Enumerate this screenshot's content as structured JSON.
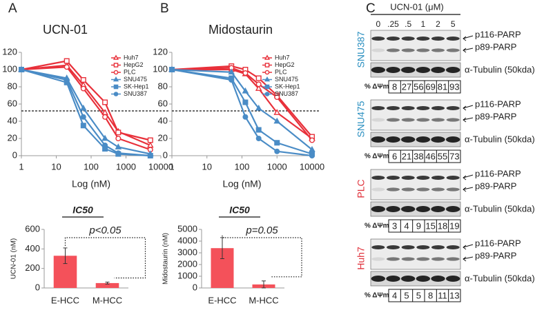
{
  "panels": [
    "A",
    "B",
    "C"
  ],
  "chart_data": [
    {
      "type": "line",
      "title": "UCN-01",
      "xlabel": "Log (nM)",
      "xscale": "log",
      "xlim": [
        1,
        10000
      ],
      "xticks": [
        1,
        10,
        100,
        1000,
        10000
      ],
      "ylim": [
        0,
        120
      ],
      "yticks": [
        0,
        20,
        40,
        60,
        80,
        100,
        120
      ],
      "ref_line": 52,
      "legend": "upper right",
      "x": [
        1,
        20,
        60,
        250,
        600,
        5000
      ],
      "series": [
        {
          "name": "Huh7",
          "color": "#e8303a",
          "marker": "triangle",
          "filled": false,
          "values": [
            100,
            105,
            82,
            50,
            28,
            12
          ]
        },
        {
          "name": "HepG2",
          "color": "#e8303a",
          "marker": "square",
          "filled": false,
          "values": [
            100,
            110,
            88,
            62,
            27,
            18
          ]
        },
        {
          "name": "PLC",
          "color": "#e8303a",
          "marker": "circle",
          "filled": false,
          "values": [
            100,
            103,
            78,
            45,
            20,
            7
          ]
        },
        {
          "name": "SNU475",
          "color": "#4a8cc6",
          "marker": "triangle",
          "filled": true,
          "values": [
            100,
            90,
            55,
            20,
            10,
            2
          ]
        },
        {
          "name": "SK-Hep1",
          "color": "#4a8cc6",
          "marker": "square",
          "filled": true,
          "values": [
            100,
            85,
            35,
            8,
            2,
            0
          ]
        },
        {
          "name": "SNU387",
          "color": "#4a8cc6",
          "marker": "circle",
          "filled": true,
          "values": [
            100,
            88,
            45,
            12,
            3,
            0
          ]
        }
      ]
    },
    {
      "type": "line",
      "title": "Midostaurin",
      "xlabel": "Log (nM)",
      "xscale": "log",
      "xlim": [
        1,
        10000
      ],
      "xticks": [
        1,
        10,
        100,
        1000,
        10000
      ],
      "ylim": [
        0,
        120
      ],
      "yticks": [
        0,
        20,
        40,
        60,
        80,
        100,
        120
      ],
      "ref_line": 52,
      "legend": "upper right",
      "x": [
        1,
        50,
        125,
        300,
        1000,
        10000
      ],
      "series": [
        {
          "name": "Huh7",
          "color": "#e8303a",
          "marker": "triangle",
          "filled": false,
          "values": [
            100,
            100,
            95,
            78,
            50,
            20
          ]
        },
        {
          "name": "HepG2",
          "color": "#e8303a",
          "marker": "square",
          "filled": false,
          "values": [
            100,
            104,
            100,
            90,
            70,
            22
          ]
        },
        {
          "name": "PLC",
          "color": "#e8303a",
          "marker": "circle",
          "filled": false,
          "values": [
            100,
            102,
            96,
            83,
            68,
            18
          ]
        },
        {
          "name": "SNU475",
          "color": "#4a8cc6",
          "marker": "triangle",
          "filled": true,
          "values": [
            100,
            97,
            75,
            55,
            40,
            7
          ]
        },
        {
          "name": "SK-Hep1",
          "color": "#4a8cc6",
          "marker": "square",
          "filled": true,
          "values": [
            100,
            90,
            62,
            30,
            15,
            2
          ]
        },
        {
          "name": "SNU387",
          "color": "#4a8cc6",
          "marker": "circle",
          "filled": true,
          "values": [
            100,
            88,
            45,
            20,
            5,
            0
          ]
        }
      ]
    },
    {
      "type": "bar",
      "title": "IC50",
      "ylabel": "UCN-01 (nM)",
      "annotation": "p<0.05",
      "categories": [
        "E-HCC",
        "M-HCC"
      ],
      "values": [
        330,
        50
      ],
      "errors": [
        80,
        10
      ],
      "color": "#f4515a",
      "error_color": "#333333",
      "ylim": [
        0,
        600
      ],
      "yticks": [
        0,
        200,
        400,
        600
      ]
    },
    {
      "type": "bar",
      "title": "IC50",
      "ylabel": "Midostaurin (nM)",
      "annotation": "p=0.05",
      "categories": [
        "E-HCC",
        "M-HCC"
      ],
      "values": [
        3400,
        300
      ],
      "errors": [
        900,
        300
      ],
      "color": "#f4515a",
      "error_color": "#333333",
      "ylim": [
        0,
        5000
      ],
      "yticks": [
        0,
        1000,
        2000,
        3000,
        4000,
        5000
      ]
    }
  ],
  "blot": {
    "header": "UCN-01 (μM)",
    "doses": [
      "0",
      ".25",
      ".5",
      "1",
      "2",
      "5"
    ],
    "bands": {
      "p116": "p116-PARP",
      "p89": "p89-PARP",
      "tubulin": "α-Tubulin (50kda)"
    },
    "metric": "% ΔΨm",
    "lines": [
      {
        "name": "SNU387",
        "color": "#2a8fc0",
        "values": [
          8,
          27,
          56,
          69,
          81,
          93
        ]
      },
      {
        "name": "SNU475",
        "color": "#2a8fc0",
        "values": [
          6,
          21,
          38,
          46,
          55,
          73
        ]
      },
      {
        "name": "PLC",
        "color": "#e0303a",
        "values": [
          3,
          4,
          9,
          15,
          18,
          19
        ]
      },
      {
        "name": "Huh7",
        "color": "#e0303a",
        "values": [
          4,
          5,
          5,
          8,
          11,
          13
        ]
      }
    ]
  }
}
